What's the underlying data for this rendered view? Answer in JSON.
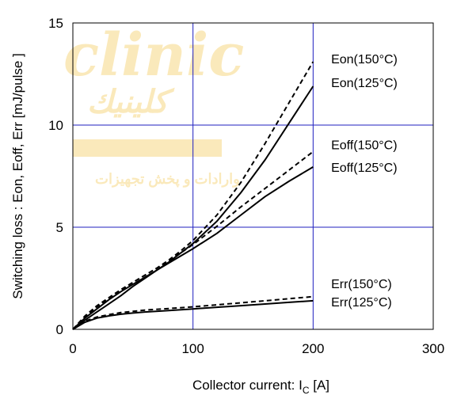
{
  "chart_data": {
    "type": "line",
    "xlabel": "Collector current: I",
    "xlabel_sub": "C",
    "xlabel_unit": " [A]",
    "ylabel": "Switching loss : Eon, Eoff, Err  [mJ/pulse ]",
    "xlim": [
      0,
      300
    ],
    "ylim": [
      0,
      15
    ],
    "x_ticks": [
      0,
      100,
      200,
      300
    ],
    "y_ticks": [
      0,
      5,
      10,
      15
    ],
    "x_tick_labels": [
      "0",
      "100",
      "200",
      "300"
    ],
    "y_tick_labels": [
      "0",
      "5",
      "10",
      "15"
    ],
    "grid": true,
    "series": [
      {
        "name": "Eon(150°C)",
        "style": "dashed",
        "x": [
          0,
          10,
          20,
          30,
          40,
          50,
          60,
          70,
          80,
          90,
          100,
          120,
          140,
          160,
          180,
          200
        ],
        "y": [
          0,
          0.6,
          1.1,
          1.5,
          1.9,
          2.3,
          2.65,
          3.0,
          3.4,
          3.85,
          4.35,
          5.6,
          7.2,
          9.1,
          11.1,
          13.1
        ]
      },
      {
        "name": "Eon(125°C)",
        "style": "solid",
        "x": [
          0,
          10,
          20,
          30,
          40,
          50,
          60,
          70,
          80,
          90,
          100,
          120,
          140,
          160,
          180,
          200
        ],
        "y": [
          0,
          0.45,
          0.85,
          1.25,
          1.65,
          2.1,
          2.5,
          2.9,
          3.3,
          3.75,
          4.2,
          5.3,
          6.7,
          8.3,
          10.1,
          11.9
        ]
      },
      {
        "name": "Eoff(150°C)",
        "style": "dashed",
        "x": [
          0,
          10,
          20,
          30,
          40,
          50,
          60,
          70,
          80,
          90,
          100,
          120,
          140,
          160,
          180,
          200
        ],
        "y": [
          0,
          0.65,
          1.15,
          1.55,
          1.95,
          2.3,
          2.65,
          3.0,
          3.35,
          3.75,
          4.15,
          5.05,
          6.0,
          6.9,
          7.8,
          8.7
        ]
      },
      {
        "name": "Eoff(125°C)",
        "style": "solid",
        "x": [
          0,
          10,
          20,
          30,
          40,
          50,
          60,
          70,
          80,
          90,
          100,
          120,
          140,
          160,
          180,
          200
        ],
        "y": [
          0,
          0.55,
          1.0,
          1.45,
          1.85,
          2.2,
          2.55,
          2.9,
          3.25,
          3.6,
          3.95,
          4.7,
          5.6,
          6.5,
          7.25,
          7.95
        ]
      },
      {
        "name": "Err(150°C)",
        "style": "dashed",
        "x": [
          0,
          10,
          20,
          30,
          40,
          50,
          60,
          80,
          100,
          120,
          140,
          160,
          180,
          200
        ],
        "y": [
          0,
          0.4,
          0.6,
          0.72,
          0.82,
          0.88,
          0.94,
          1.02,
          1.1,
          1.2,
          1.3,
          1.4,
          1.5,
          1.6
        ]
      },
      {
        "name": "Err(125°C)",
        "style": "solid",
        "x": [
          0,
          10,
          20,
          30,
          40,
          50,
          60,
          80,
          100,
          120,
          140,
          160,
          180,
          200
        ],
        "y": [
          0,
          0.35,
          0.55,
          0.66,
          0.74,
          0.8,
          0.85,
          0.92,
          1.0,
          1.08,
          1.16,
          1.24,
          1.32,
          1.4
        ]
      }
    ],
    "legend_labels": [
      {
        "text": "Eon(150°C)",
        "x": 215,
        "y": 13.25
      },
      {
        "text": "Eon(125°C)",
        "x": 215,
        "y": 12.1
      },
      {
        "text": "Eoff(150°C)",
        "x": 215,
        "y": 9.05
      },
      {
        "text": "Eoff(125°C)",
        "x": 215,
        "y": 7.95
      },
      {
        "text": "Err(150°C)",
        "x": 215,
        "y": 2.25
      },
      {
        "text": "Err(125°C)",
        "x": 215,
        "y": 1.35
      }
    ]
  },
  "watermark": {
    "latin": "clinic",
    "arabic_1": "كلينيك",
    "arabic_2": "وارادات و پخش تجهیزات"
  },
  "colors": {
    "grid": "#1f1fbf",
    "frame": "#000000",
    "line": "#000000",
    "watermark": "#f6cf6a"
  }
}
